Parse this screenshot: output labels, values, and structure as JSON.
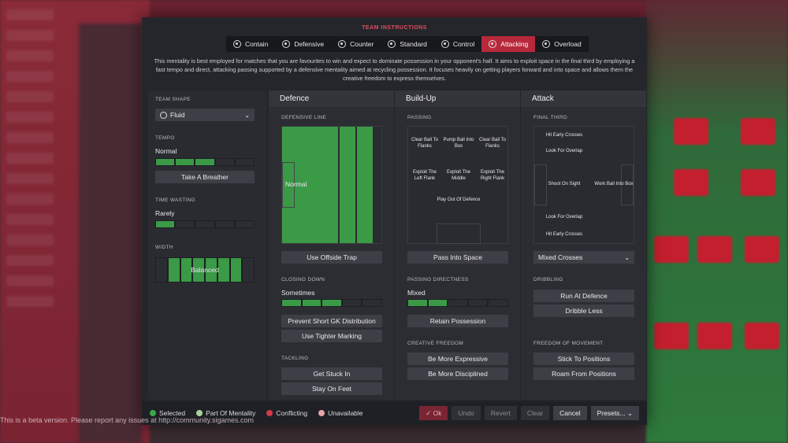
{
  "dialog": {
    "title": "TEAM INSTRUCTIONS",
    "description": "This mentality is best employed for matches that you are favourites to win and expect to dominate possession in your opponent's half. It aims to exploit space in the final third by employing a fast tempo and direct, attacking passing supported by a defensive mentality aimed at recycling possession. It focuses heavily on getting players forward and into space and allows them the creative freedom to express themselves."
  },
  "mentalities": [
    {
      "label": "Contain",
      "icon": "contain-icon"
    },
    {
      "label": "Defensive",
      "icon": "defensive-icon"
    },
    {
      "label": "Counter",
      "icon": "counter-icon"
    },
    {
      "label": "Standard",
      "icon": "standard-icon"
    },
    {
      "label": "Control",
      "icon": "control-icon"
    },
    {
      "label": "Attacking",
      "icon": "attacking-icon",
      "active": true
    },
    {
      "label": "Overload",
      "icon": "overload-icon"
    }
  ],
  "left": {
    "team_shape_label": "TEAM SHAPE",
    "team_shape_value": "Fluid",
    "tempo_label": "TEMPO",
    "tempo_value": "Normal",
    "tempo_level": 0.6,
    "tempo_button": "Take A Breather",
    "time_wasting_label": "TIME WASTING",
    "time_wasting_value": "Rarely",
    "time_wasting_level": 0.2,
    "width_label": "WIDTH",
    "width_value": "Balanced"
  },
  "defence": {
    "header": "Defence",
    "defensive_line_label": "DEFENSIVE LINE",
    "defensive_line_value": "Normal",
    "offside_button": "Use Offside Trap",
    "closing_down_label": "CLOSING DOWN",
    "closing_down_value": "Sometimes",
    "closing_down_level": 0.5,
    "buttons": [
      "Prevent Short GK Distribution",
      "Use Tighter Marking"
    ],
    "tackling_label": "TACKLING",
    "tackling_buttons": [
      "Get Stuck In",
      "Stay On Feet"
    ]
  },
  "buildup": {
    "header": "Build-Up",
    "passing_label": "PASSING",
    "zones": [
      "Clear Ball To Flanks",
      "Pump Ball Into Box",
      "Clear Ball To Flanks",
      "Exploit The Left Flank",
      "Exploit The Middle",
      "Exploit The Right Flank",
      "Play Out Of Defence"
    ],
    "pass_space_button": "Pass Into Space",
    "directness_label": "PASSING DIRECTNESS",
    "directness_value": "Mixed",
    "directness_level": 0.4,
    "retain_button": "Retain Possession",
    "creative_label": "CREATIVE FREEDOM",
    "creative_buttons": [
      "Be More Expressive",
      "Be More Disciplined"
    ]
  },
  "attack": {
    "header": "Attack",
    "final_third_label": "FINAL THIRD",
    "zones": [
      "Hit Early Crosses",
      "Look For Overlap",
      "Shoot On Sight",
      "Work Ball Into Box",
      "Look For Overlap",
      "Hit Early Crosses"
    ],
    "crosses_value": "Mixed Crosses",
    "dribbling_label": "DRIBBLING",
    "dribbling_buttons": [
      "Run At Defence",
      "Dribble Less"
    ],
    "freedom_label": "FREEDOM OF MOVEMENT",
    "freedom_buttons": [
      "Stick To Positions",
      "Roam From Positions"
    ]
  },
  "footer": {
    "legend": [
      {
        "label": "Selected",
        "color": "#3aa84a"
      },
      {
        "label": "Part Of Mentality",
        "color": "#a6d39a"
      },
      {
        "label": "Conflicting",
        "color": "#d23a4a"
      },
      {
        "label": "Unavailable",
        "color": "#e9a3a9"
      }
    ],
    "ok": "Ok",
    "undo": "Undo",
    "revert": "Revert",
    "clear": "Clear",
    "cancel": "Cancel",
    "presets": "Presets..."
  },
  "beta_note": "This is a beta version. Please report any issues at http://community.sigames.com"
}
